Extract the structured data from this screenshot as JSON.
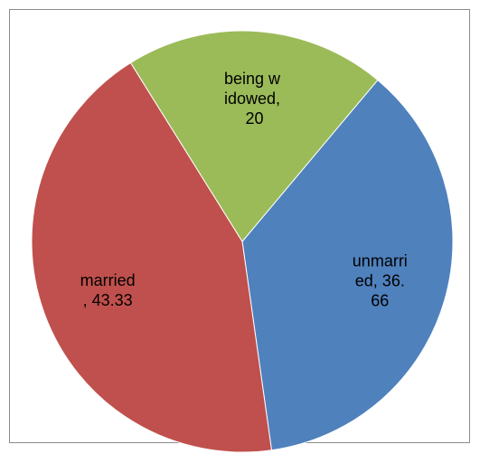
{
  "chart_data": {
    "type": "pie",
    "values": [
      36.66,
      43.33,
      20
    ],
    "value_labels": [
      "unmarried, 36.66",
      "married, 43.33",
      "being widowed, 20"
    ],
    "colors": [
      "#4f81bd",
      "#c0504d",
      "#9bbb59"
    ]
  }
}
